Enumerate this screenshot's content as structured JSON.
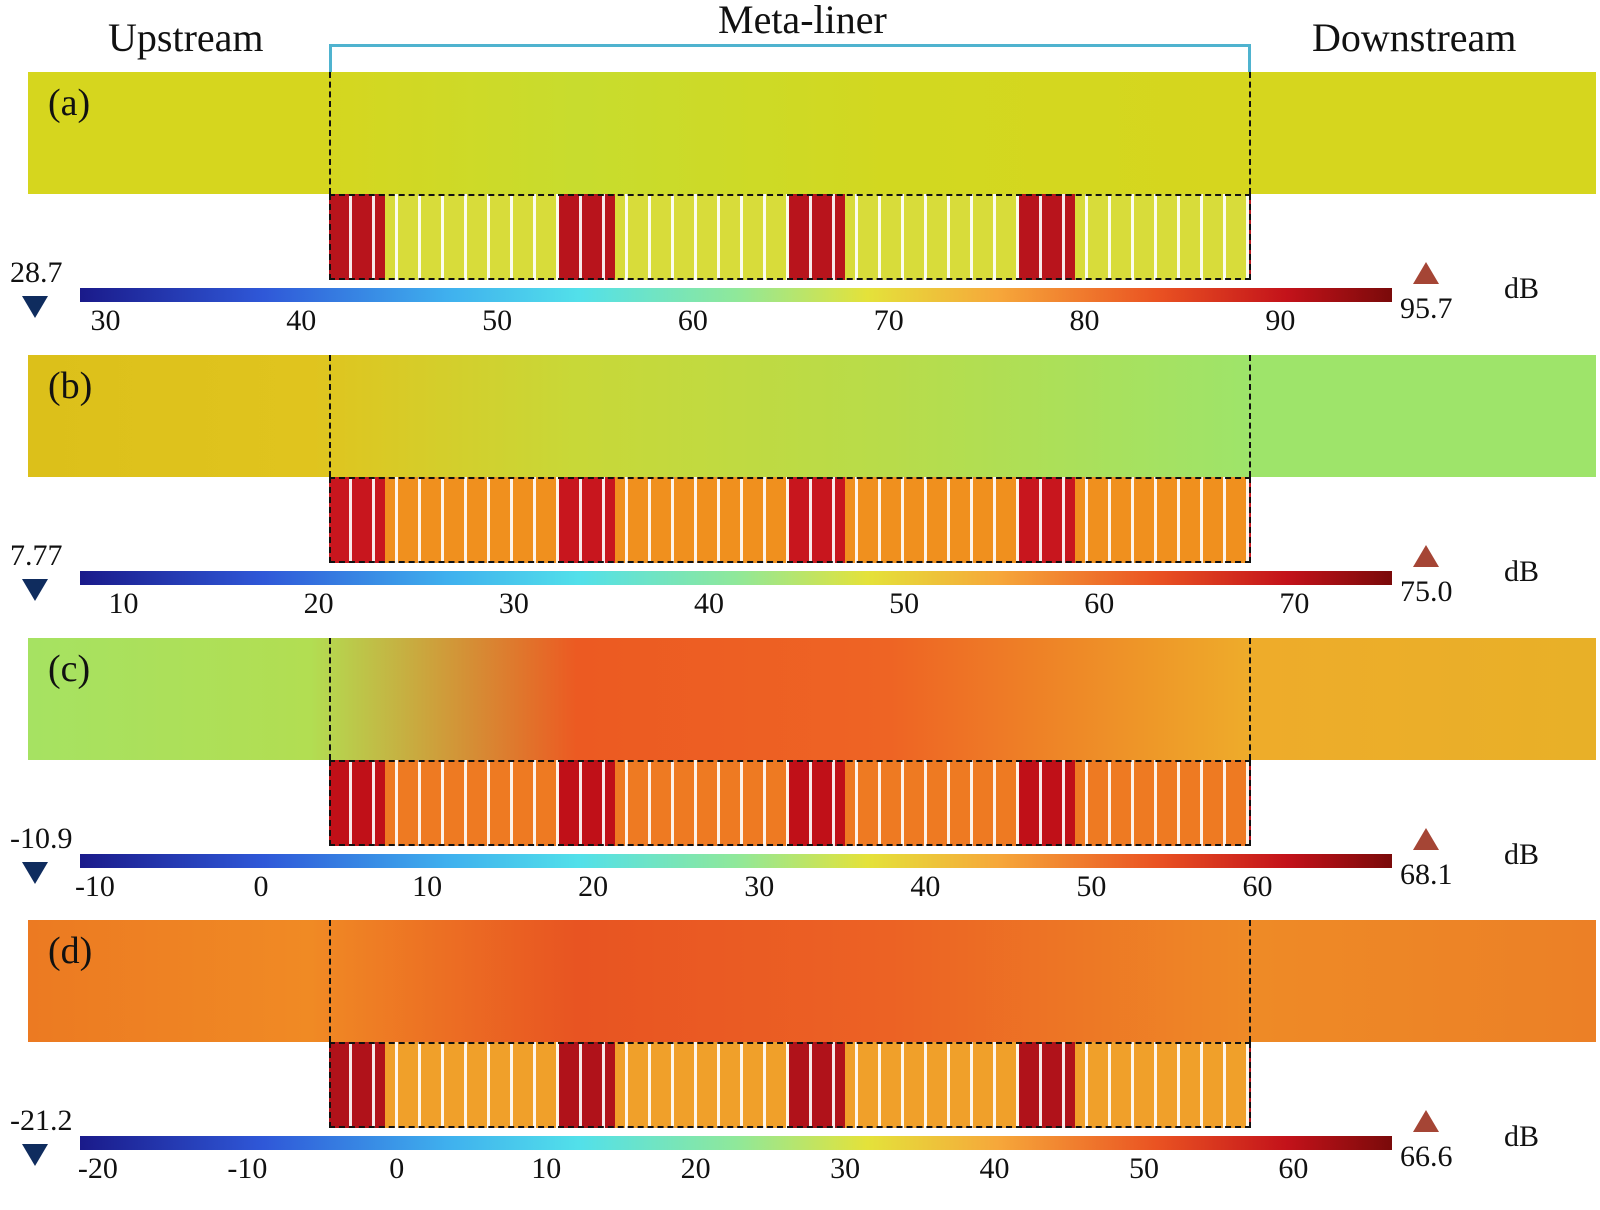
{
  "header": {
    "upstream": "Upstream",
    "meta_liner": "Meta-liner",
    "downstream": "Downstream"
  },
  "panels": [
    {
      "label": "(a)",
      "unit": "dB",
      "min_label": "28.7",
      "max_label": "95.7",
      "range": [
        28.7,
        95.7
      ],
      "ticks": [
        "30",
        "40",
        "50",
        "60",
        "70",
        "80",
        "90"
      ],
      "duct_colors": [
        "#d6d61e",
        "#d6d61e",
        "#c8dc2e",
        "#d2d820",
        "#d6d61e",
        "#d6d61e"
      ],
      "liner_hot": "#b8141c",
      "liner_base": "#d8dc3a"
    },
    {
      "label": "(b)",
      "unit": "dB",
      "min_label": "7.77",
      "max_label": "75.0",
      "range": [
        7.77,
        75.0
      ],
      "ticks": [
        "10",
        "20",
        "30",
        "40",
        "50",
        "60",
        "70"
      ],
      "duct_colors": [
        "#dcc01a",
        "#e0c41e",
        "#c8d838",
        "#b8dc4a",
        "#9ee46a",
        "#9ee46a"
      ],
      "liner_hot": "#c8161e",
      "liner_base": "#f0901e"
    },
    {
      "label": "(c)",
      "unit": "dB",
      "min_label": "-10.9",
      "max_label": "68.1",
      "range": [
        -10.9,
        68.1
      ],
      "ticks": [
        "-10",
        "0",
        "10",
        "20",
        "30",
        "40",
        "50",
        "60"
      ],
      "duct_colors": [
        "#a6e262",
        "#b2de52",
        "#ec5a22",
        "#ee6424",
        "#eeac2a",
        "#e8b028"
      ],
      "liner_hot": "#c01018",
      "liner_base": "#ee7a22"
    },
    {
      "label": "(d)",
      "unit": "dB",
      "min_label": "-21.2",
      "max_label": "66.6",
      "range": [
        -21.2,
        66.6
      ],
      "ticks": [
        "-20",
        "-10",
        "0",
        "10",
        "20",
        "30",
        "40",
        "50",
        "60"
      ],
      "duct_colors": [
        "#ec7a22",
        "#f08a24",
        "#e85422",
        "#ec6224",
        "#ee8a26",
        "#ec8026"
      ],
      "liner_hot": "#b0121a",
      "liner_base": "#f0a02a"
    }
  ]
}
